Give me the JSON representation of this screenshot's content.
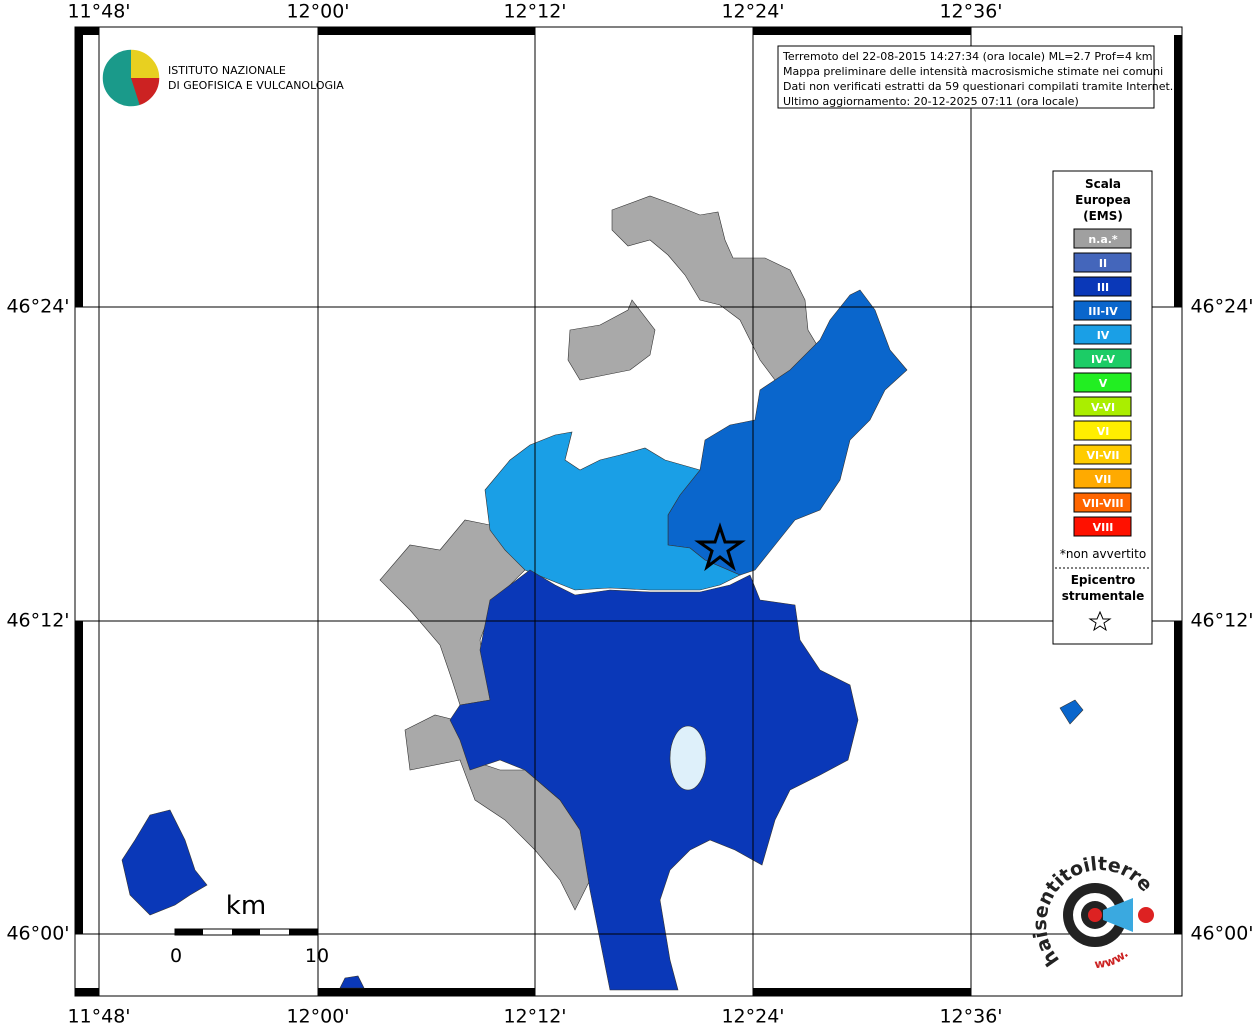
{
  "header": {
    "logo_lines": [
      "ISTITUTO NAZIONALE",
      "DI GEOFISICA E VULCANOLOGIA"
    ]
  },
  "info": [
    "Terremoto del 22-08-2015 14:27:34 (ora locale) ML=2.7 Prof=4 km",
    "Mappa preliminare delle intensità macrosismiche stimate nei comuni",
    "Dati non verificati estratti da 59 questionari compilati tramite Internet.",
    "Ultimo aggiornamento: 20-12-2025 07:11 (ora locale)"
  ],
  "axes": {
    "lon": [
      "11°48'",
      "12°00'",
      "12°12'",
      "12°24'",
      "12°36'"
    ],
    "lat": [
      "46°24'",
      "46°12'",
      "46°00'"
    ]
  },
  "legend": {
    "title": [
      "Scala",
      "Europea",
      "(EMS)"
    ],
    "items": [
      {
        "label": "n.a.*",
        "color": "#a0a0a0"
      },
      {
        "label": "II",
        "color": "#4466bb"
      },
      {
        "label": "III",
        "color": "#0a38b8"
      },
      {
        "label": "III-IV",
        "color": "#0a66cc"
      },
      {
        "label": "IV",
        "color": "#1a9fe6"
      },
      {
        "label": "IV-V",
        "color": "#1ccc66"
      },
      {
        "label": "V",
        "color": "#22ee22"
      },
      {
        "label": "V-VI",
        "color": "#aaee00"
      },
      {
        "label": "VI",
        "color": "#ffee00"
      },
      {
        "label": "VI-VII",
        "color": "#ffcc00"
      },
      {
        "label": "VII",
        "color": "#ffaa00"
      },
      {
        "label": "VII-VIII",
        "color": "#ff6600"
      },
      {
        "label": "VIII",
        "color": "#ff1100"
      }
    ],
    "note": "*non avvertito",
    "epicenter": [
      "Epicentro",
      "strumentale"
    ]
  },
  "scale": {
    "unit": "km",
    "start": "0",
    "end": "10"
  },
  "footer_logo": "haisentitoilterremoto.it",
  "footer_www": "www."
}
